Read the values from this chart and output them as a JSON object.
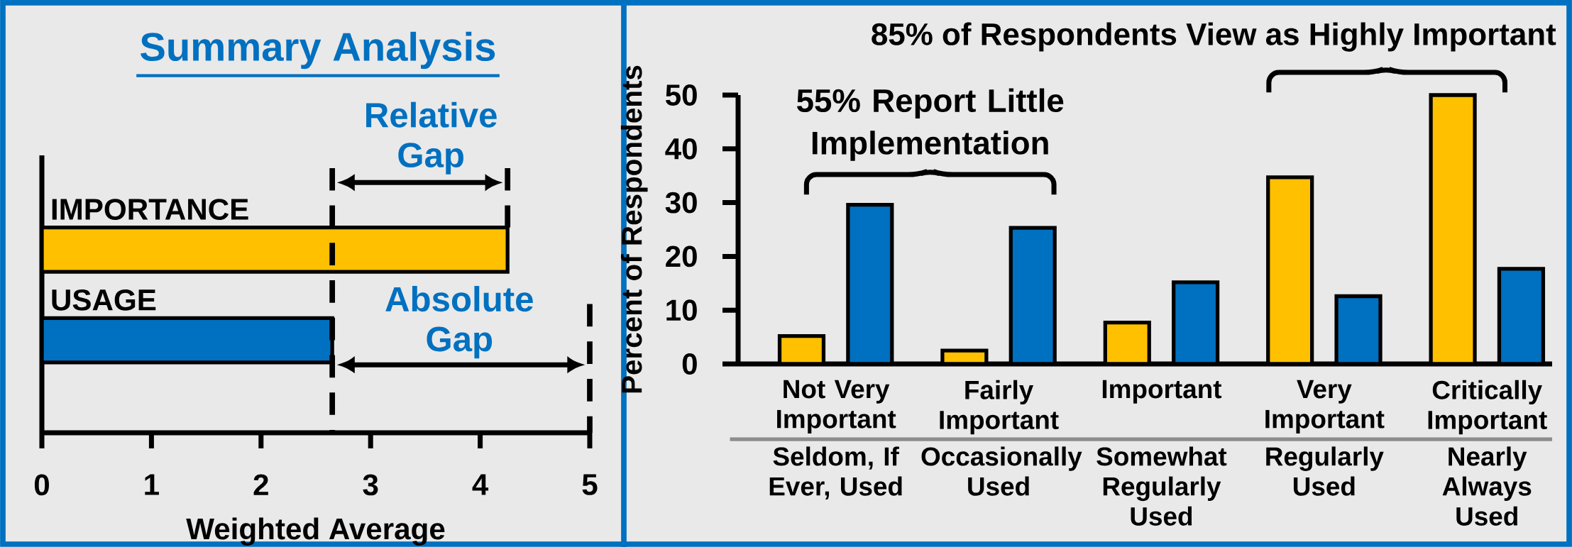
{
  "chart_data": [
    {
      "type": "bar",
      "orientation": "horizontal",
      "title": "Summary Analysis",
      "categories": [
        "IMPORTANCE",
        "USAGE"
      ],
      "values": [
        4.25,
        2.65
      ],
      "colors": [
        "#ffc000",
        "#0070c0"
      ],
      "xlim": [
        0,
        5
      ],
      "xticks": [
        0,
        1,
        2,
        3,
        4,
        5
      ],
      "xlabel": "Weighted Average",
      "ref_lines": [
        {
          "axis": "x",
          "value": 2.65,
          "line_style": "dashed"
        },
        {
          "axis": "x",
          "value": 4.25,
          "line_style": "dashed"
        },
        {
          "axis": "x",
          "value": 5,
          "line_style": "dashed"
        }
      ],
      "annotations": [
        "Relative Gap",
        "Absolute Gap"
      ]
    },
    {
      "type": "bar",
      "categories": [
        "Not Very Important",
        "Fairly Important",
        "Important",
        "Very Important",
        "Critically Important"
      ],
      "series": [
        {
          "color": "#ffc000",
          "values": [
            5.2,
            2.5,
            7.7,
            34.7,
            50
          ]
        },
        {
          "color": "#0070c0",
          "values": [
            29.6,
            25.3,
            15.2,
            12.6,
            17.7
          ]
        }
      ],
      "ylim": [
        0,
        50
      ],
      "yticks": [
        0,
        10,
        20,
        30,
        40,
        50
      ],
      "ylabel": "Percent of Respondents",
      "annotations": [
        "Seldom, If Ever, Used",
        "Occasionally Used",
        "Somewhat Regularly Used",
        "Regularly Used",
        "Nearly Always Used",
        "55% Report Little Implementation",
        "85% of Respondents View as Highly Important"
      ]
    }
  ]
}
